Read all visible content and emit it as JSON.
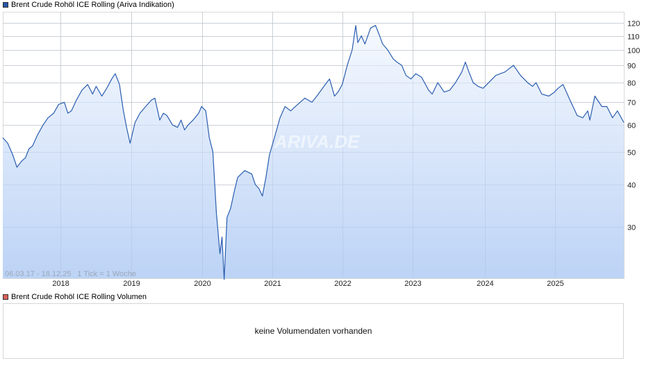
{
  "price_panel": {
    "legend_label": "Brent Crude Rohöl ICE Rolling (Ariva Indikation)",
    "legend_color": "#2857a8",
    "range_label": "06.03.17 - 18.12.25",
    "tick_label": "1 Tick = 1 Woche",
    "watermark": "ARIVA.DE"
  },
  "volume_panel": {
    "legend_label": "Brent Crude Rohöl ICE Rolling Volumen",
    "legend_color": "#d9615c",
    "empty_message": "keine Volumendaten vorhanden"
  },
  "colors": {
    "line": "#2a5db0",
    "fill_top": "#f4f7fd",
    "fill_bottom": "#bcd3f6",
    "grid": "#d9d9d9"
  },
  "chart_data": {
    "type": "area",
    "title": "Brent Crude Rohöl ICE Rolling (Ariva Indikation)",
    "xlabel": "",
    "ylabel": "",
    "y_scale": "log",
    "ylim": [
      21,
      127
    ],
    "y_ticks": [
      30,
      40,
      50,
      60,
      70,
      80,
      90,
      100,
      110,
      120
    ],
    "x_ticks": [
      "2018",
      "2019",
      "2020",
      "2021",
      "2022",
      "2023",
      "2024",
      "2025"
    ],
    "grid": true,
    "legend_position": "top-left",
    "date_range": "06.03.17 - 18.12.25",
    "interval": "1 Tick = 1 Woche",
    "x": [
      2017.18,
      2017.25,
      2017.32,
      2017.38,
      2017.45,
      2017.5,
      2017.55,
      2017.6,
      2017.67,
      2017.75,
      2017.82,
      2017.9,
      2017.97,
      2018.05,
      2018.1,
      2018.15,
      2018.22,
      2018.3,
      2018.38,
      2018.45,
      2018.5,
      2018.58,
      2018.65,
      2018.72,
      2018.77,
      2018.83,
      2018.88,
      2018.93,
      2018.98,
      2019.05,
      2019.12,
      2019.2,
      2019.28,
      2019.33,
      2019.4,
      2019.45,
      2019.5,
      2019.58,
      2019.65,
      2019.7,
      2019.75,
      2019.8,
      2019.87,
      2019.95,
      2019.99,
      2020.05,
      2020.1,
      2020.15,
      2020.2,
      2020.25,
      2020.28,
      2020.31,
      2020.35,
      2020.4,
      2020.45,
      2020.5,
      2020.6,
      2020.7,
      2020.75,
      2020.8,
      2020.85,
      2020.9,
      2020.95,
      2021.02,
      2021.1,
      2021.17,
      2021.25,
      2021.35,
      2021.45,
      2021.55,
      2021.62,
      2021.72,
      2021.8,
      2021.87,
      2021.92,
      2021.98,
      2022.05,
      2022.12,
      2022.17,
      2022.2,
      2022.25,
      2022.3,
      2022.38,
      2022.45,
      2022.5,
      2022.55,
      2022.62,
      2022.7,
      2022.75,
      2022.82,
      2022.88,
      2022.95,
      2023.02,
      2023.1,
      2023.2,
      2023.25,
      2023.33,
      2023.42,
      2023.5,
      2023.58,
      2023.67,
      2023.72,
      2023.77,
      2023.83,
      2023.9,
      2023.97,
      2024.05,
      2024.15,
      2024.28,
      2024.4,
      2024.5,
      2024.6,
      2024.67,
      2024.72,
      2024.8,
      2024.9,
      2024.98,
      2025.03,
      2025.1,
      2025.2,
      2025.3,
      2025.38,
      2025.45,
      2025.48,
      2025.55,
      2025.65,
      2025.72,
      2025.8,
      2025.87,
      2025.96
    ],
    "series": [
      {
        "name": "Brent Crude Rohöl ICE Rolling",
        "values": [
          55,
          53,
          49,
          45,
          47,
          48,
          51,
          52,
          56,
          60,
          63,
          65,
          69,
          70,
          65,
          66,
          71,
          76,
          79,
          74,
          78,
          73,
          77,
          82,
          85,
          79,
          67,
          59,
          53,
          61,
          65,
          68,
          71,
          72,
          62,
          65,
          64,
          60,
          59,
          62,
          58,
          60,
          62,
          65,
          68,
          66,
          55,
          50,
          33,
          25,
          28,
          21,
          32,
          34,
          38,
          42,
          44,
          43,
          40,
          39,
          37,
          42,
          49,
          55,
          63,
          68,
          66,
          69,
          72,
          70,
          73,
          78,
          82,
          73,
          75,
          79,
          90,
          100,
          118,
          105,
          110,
          104,
          116,
          118,
          111,
          104,
          100,
          94,
          92,
          90,
          84,
          82,
          85,
          83,
          76,
          74,
          80,
          75,
          76,
          80,
          86,
          92,
          86,
          80,
          78,
          77,
          80,
          84,
          86,
          90,
          84,
          80,
          78,
          80,
          74,
          73,
          75,
          77,
          79,
          71,
          64,
          63,
          66,
          62,
          73,
          68,
          68,
          63,
          66,
          61
        ]
      }
    ]
  }
}
